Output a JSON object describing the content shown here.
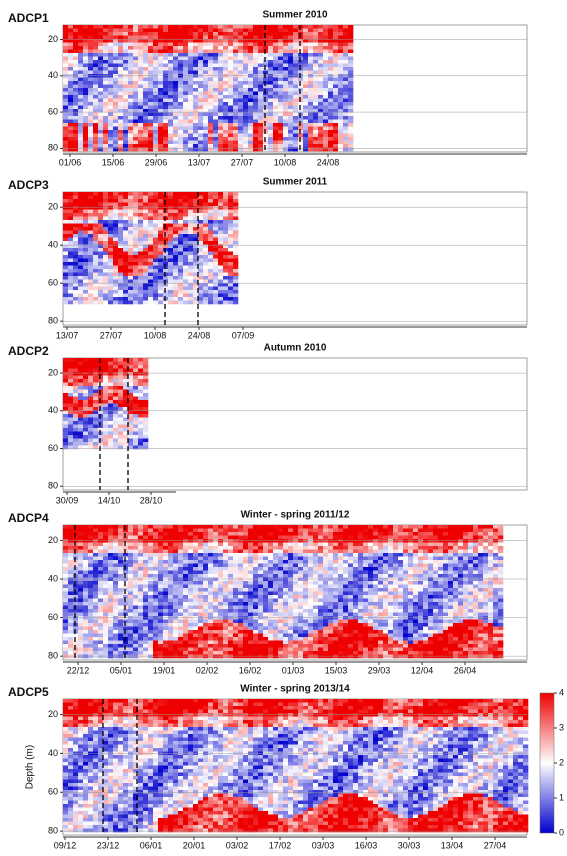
{
  "chart_data": [
    {
      "type": "heatmap",
      "title": "Summer 2010",
      "label": "ADCP1",
      "categories": [
        "01/06",
        "15/06",
        "29/06",
        "13/07",
        "27/07",
        "10/08",
        "24/08"
      ],
      "ylim": [
        12,
        82
      ],
      "yticks": [
        20,
        40,
        60,
        80
      ],
      "inverted": true,
      "grid": true
    },
    {
      "type": "heatmap",
      "title": "Summer 2011",
      "label": "ADCP3",
      "categories": [
        "13/07",
        "27/07",
        "10/08",
        "24/08",
        "07/09"
      ],
      "ylim": [
        12,
        82
      ],
      "yticks": [
        20,
        40,
        60,
        80
      ],
      "inverted": true,
      "grid": true
    },
    {
      "type": "heatmap",
      "title": "Autumn 2010",
      "label": "ADCP2",
      "categories": [
        "30/09",
        "14/10",
        "28/10"
      ],
      "ylim": [
        12,
        82
      ],
      "yticks": [
        20,
        40,
        60,
        80
      ],
      "inverted": true,
      "grid": true
    },
    {
      "type": "heatmap",
      "title": "Winter - spring 2011/12",
      "label": "ADCP4",
      "categories": [
        "22/12",
        "05/01",
        "19/01",
        "02/02",
        "16/02",
        "01/03",
        "15/03",
        "29/03",
        "12/04",
        "26/04"
      ],
      "ylim": [
        12,
        82
      ],
      "yticks": [
        20,
        40,
        60,
        80
      ],
      "inverted": true,
      "grid": true
    },
    {
      "type": "heatmap",
      "title": "Winter - spring 2013/14",
      "label": "ADCP5",
      "ylabel": "Depth (m)",
      "categories": [
        "09/12",
        "23/12",
        "06/01",
        "20/01",
        "03/02",
        "17/02",
        "03/03",
        "16/03",
        "30/03",
        "13/04",
        "27/04"
      ],
      "ylim": [
        12,
        82
      ],
      "yticks": [
        20,
        40,
        60,
        80
      ],
      "inverted": true,
      "grid": true,
      "colorbar": {
        "lim": [
          0,
          4
        ],
        "ticks": [
          0,
          1,
          2,
          3,
          4
        ],
        "colors": [
          "#0000cc",
          "#ffffff",
          "#ee0000"
        ]
      }
    }
  ]
}
